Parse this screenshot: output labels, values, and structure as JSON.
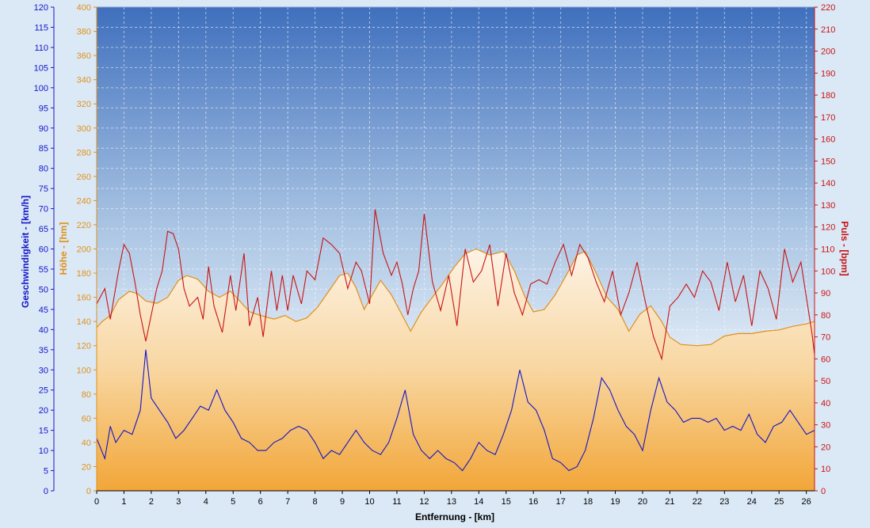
{
  "chart_data": {
    "type": "line",
    "xlabel": "Entfernung - [km]",
    "x_ticks": [
      0,
      1,
      2,
      3,
      4,
      5,
      6,
      7,
      8,
      9,
      10,
      11,
      12,
      13,
      14,
      15,
      16,
      17,
      18,
      19,
      20,
      21,
      22,
      23,
      24,
      25,
      26
    ],
    "xlim": [
      0,
      26.3
    ],
    "grid": true,
    "axes": {
      "speed": {
        "label": "Geschwindigkeit - [km/h]",
        "range": [
          0,
          120
        ],
        "step": 5,
        "color": "#1414c8"
      },
      "altitude": {
        "label": "Höhe - [hm]",
        "range": [
          0,
          400
        ],
        "step": 20,
        "color": "#e0901a"
      },
      "pulse": {
        "label": "Puls - [bpm]",
        "range": [
          0,
          220
        ],
        "step": 10,
        "color": "#c81414"
      }
    },
    "series": [
      {
        "name": "Höhe",
        "axis": "altitude",
        "type": "area",
        "points": [
          [
            0,
            135
          ],
          [
            0.2,
            140
          ],
          [
            0.5,
            145
          ],
          [
            0.8,
            158
          ],
          [
            1.2,
            165
          ],
          [
            1.5,
            163
          ],
          [
            1.8,
            157
          ],
          [
            2.2,
            155
          ],
          [
            2.6,
            160
          ],
          [
            3.0,
            174
          ],
          [
            3.3,
            178
          ],
          [
            3.7,
            175
          ],
          [
            4.1,
            165
          ],
          [
            4.5,
            160
          ],
          [
            4.9,
            165
          ],
          [
            5.2,
            158
          ],
          [
            5.6,
            148
          ],
          [
            6.0,
            145
          ],
          [
            6.5,
            142
          ],
          [
            6.9,
            145
          ],
          [
            7.3,
            140
          ],
          [
            7.7,
            143
          ],
          [
            8.1,
            152
          ],
          [
            8.5,
            165
          ],
          [
            8.9,
            178
          ],
          [
            9.2,
            180
          ],
          [
            9.5,
            168
          ],
          [
            9.8,
            150
          ],
          [
            10.1,
            162
          ],
          [
            10.4,
            174
          ],
          [
            10.8,
            162
          ],
          [
            11.2,
            145
          ],
          [
            11.5,
            132
          ],
          [
            11.9,
            148
          ],
          [
            12.3,
            160
          ],
          [
            12.7,
            172
          ],
          [
            13.1,
            185
          ],
          [
            13.5,
            196
          ],
          [
            13.9,
            200
          ],
          [
            14.4,
            195
          ],
          [
            14.9,
            198
          ],
          [
            15.3,
            182
          ],
          [
            15.7,
            160
          ],
          [
            16.0,
            148
          ],
          [
            16.4,
            150
          ],
          [
            16.8,
            162
          ],
          [
            17.2,
            178
          ],
          [
            17.6,
            195
          ],
          [
            17.9,
            198
          ],
          [
            18.3,
            180
          ],
          [
            18.7,
            160
          ],
          [
            19.1,
            150
          ],
          [
            19.5,
            132
          ],
          [
            19.9,
            146
          ],
          [
            20.3,
            153
          ],
          [
            20.7,
            140
          ],
          [
            21.0,
            127
          ],
          [
            21.4,
            121
          ],
          [
            22.0,
            120
          ],
          [
            22.5,
            121
          ],
          [
            23.0,
            128
          ],
          [
            23.5,
            130
          ],
          [
            24.0,
            130
          ],
          [
            24.5,
            132
          ],
          [
            25.0,
            133
          ],
          [
            25.5,
            136
          ],
          [
            26.0,
            138
          ],
          [
            26.3,
            140
          ]
        ]
      },
      {
        "name": "Puls",
        "axis": "pulse",
        "type": "line",
        "points": [
          [
            0,
            85
          ],
          [
            0.3,
            92
          ],
          [
            0.5,
            78
          ],
          [
            0.8,
            100
          ],
          [
            1.0,
            112
          ],
          [
            1.2,
            108
          ],
          [
            1.4,
            95
          ],
          [
            1.6,
            80
          ],
          [
            1.8,
            68
          ],
          [
            2.0,
            80
          ],
          [
            2.2,
            92
          ],
          [
            2.4,
            100
          ],
          [
            2.6,
            118
          ],
          [
            2.8,
            117
          ],
          [
            3.0,
            110
          ],
          [
            3.2,
            92
          ],
          [
            3.4,
            84
          ],
          [
            3.7,
            88
          ],
          [
            3.9,
            78
          ],
          [
            4.1,
            102
          ],
          [
            4.3,
            84
          ],
          [
            4.6,
            72
          ],
          [
            4.9,
            98
          ],
          [
            5.1,
            82
          ],
          [
            5.4,
            108
          ],
          [
            5.6,
            75
          ],
          [
            5.9,
            88
          ],
          [
            6.1,
            70
          ],
          [
            6.4,
            100
          ],
          [
            6.6,
            82
          ],
          [
            6.8,
            98
          ],
          [
            7.0,
            82
          ],
          [
            7.2,
            98
          ],
          [
            7.5,
            85
          ],
          [
            7.7,
            100
          ],
          [
            8.0,
            96
          ],
          [
            8.3,
            115
          ],
          [
            8.6,
            112
          ],
          [
            8.9,
            108
          ],
          [
            9.2,
            92
          ],
          [
            9.5,
            104
          ],
          [
            9.7,
            100
          ],
          [
            10.0,
            85
          ],
          [
            10.2,
            128
          ],
          [
            10.5,
            108
          ],
          [
            10.8,
            98
          ],
          [
            11.0,
            104
          ],
          [
            11.2,
            94
          ],
          [
            11.4,
            80
          ],
          [
            11.6,
            92
          ],
          [
            11.8,
            100
          ],
          [
            12.0,
            126
          ],
          [
            12.3,
            95
          ],
          [
            12.6,
            82
          ],
          [
            12.9,
            98
          ],
          [
            13.2,
            75
          ],
          [
            13.5,
            110
          ],
          [
            13.8,
            95
          ],
          [
            14.1,
            100
          ],
          [
            14.4,
            112
          ],
          [
            14.7,
            84
          ],
          [
            15.0,
            108
          ],
          [
            15.3,
            90
          ],
          [
            15.6,
            80
          ],
          [
            15.9,
            94
          ],
          [
            16.2,
            96
          ],
          [
            16.5,
            94
          ],
          [
            16.8,
            104
          ],
          [
            17.1,
            112
          ],
          [
            17.4,
            98
          ],
          [
            17.7,
            112
          ],
          [
            18.0,
            106
          ],
          [
            18.3,
            95
          ],
          [
            18.6,
            86
          ],
          [
            18.9,
            100
          ],
          [
            19.2,
            80
          ],
          [
            19.5,
            90
          ],
          [
            19.8,
            104
          ],
          [
            20.1,
            86
          ],
          [
            20.4,
            70
          ],
          [
            20.7,
            60
          ],
          [
            21.0,
            84
          ],
          [
            21.3,
            88
          ],
          [
            21.6,
            94
          ],
          [
            21.9,
            88
          ],
          [
            22.2,
            100
          ],
          [
            22.5,
            95
          ],
          [
            22.8,
            82
          ],
          [
            23.1,
            104
          ],
          [
            23.4,
            86
          ],
          [
            23.7,
            98
          ],
          [
            24.0,
            75
          ],
          [
            24.3,
            100
          ],
          [
            24.6,
            92
          ],
          [
            24.9,
            78
          ],
          [
            25.2,
            110
          ],
          [
            25.5,
            95
          ],
          [
            25.8,
            104
          ],
          [
            26.0,
            88
          ],
          [
            26.2,
            72
          ],
          [
            26.3,
            62
          ]
        ]
      },
      {
        "name": "Geschwindigkeit",
        "axis": "speed",
        "type": "line",
        "points": [
          [
            0,
            13
          ],
          [
            0.3,
            8
          ],
          [
            0.5,
            16
          ],
          [
            0.7,
            12
          ],
          [
            1.0,
            15
          ],
          [
            1.3,
            14
          ],
          [
            1.6,
            20
          ],
          [
            1.8,
            35
          ],
          [
            2.0,
            23
          ],
          [
            2.3,
            20
          ],
          [
            2.6,
            17
          ],
          [
            2.9,
            13
          ],
          [
            3.2,
            15
          ],
          [
            3.5,
            18
          ],
          [
            3.8,
            21
          ],
          [
            4.1,
            20
          ],
          [
            4.4,
            25
          ],
          [
            4.7,
            20
          ],
          [
            5.0,
            17
          ],
          [
            5.3,
            13
          ],
          [
            5.6,
            12
          ],
          [
            5.9,
            10
          ],
          [
            6.2,
            10
          ],
          [
            6.5,
            12
          ],
          [
            6.8,
            13
          ],
          [
            7.1,
            15
          ],
          [
            7.4,
            16
          ],
          [
            7.7,
            15
          ],
          [
            8.0,
            12
          ],
          [
            8.3,
            8
          ],
          [
            8.6,
            10
          ],
          [
            8.9,
            9
          ],
          [
            9.2,
            12
          ],
          [
            9.5,
            15
          ],
          [
            9.8,
            12
          ],
          [
            10.1,
            10
          ],
          [
            10.4,
            9
          ],
          [
            10.7,
            12
          ],
          [
            11.0,
            18
          ],
          [
            11.3,
            25
          ],
          [
            11.6,
            14
          ],
          [
            11.9,
            10
          ],
          [
            12.2,
            8
          ],
          [
            12.5,
            10
          ],
          [
            12.8,
            8
          ],
          [
            13.1,
            7
          ],
          [
            13.4,
            5
          ],
          [
            13.7,
            8
          ],
          [
            14.0,
            12
          ],
          [
            14.3,
            10
          ],
          [
            14.6,
            9
          ],
          [
            14.9,
            14
          ],
          [
            15.2,
            20
          ],
          [
            15.5,
            30
          ],
          [
            15.8,
            22
          ],
          [
            16.1,
            20
          ],
          [
            16.4,
            15
          ],
          [
            16.7,
            8
          ],
          [
            17.0,
            7
          ],
          [
            17.3,
            5
          ],
          [
            17.6,
            6
          ],
          [
            17.9,
            10
          ],
          [
            18.2,
            18
          ],
          [
            18.5,
            28
          ],
          [
            18.8,
            25
          ],
          [
            19.1,
            20
          ],
          [
            19.4,
            16
          ],
          [
            19.7,
            14
          ],
          [
            20.0,
            10
          ],
          [
            20.3,
            20
          ],
          [
            20.6,
            28
          ],
          [
            20.9,
            22
          ],
          [
            21.2,
            20
          ],
          [
            21.5,
            17
          ],
          [
            21.8,
            18
          ],
          [
            22.1,
            18
          ],
          [
            22.4,
            17
          ],
          [
            22.7,
            18
          ],
          [
            23.0,
            15
          ],
          [
            23.3,
            16
          ],
          [
            23.6,
            15
          ],
          [
            23.9,
            19
          ],
          [
            24.2,
            14
          ],
          [
            24.5,
            12
          ],
          [
            24.8,
            16
          ],
          [
            25.1,
            17
          ],
          [
            25.4,
            20
          ],
          [
            25.7,
            17
          ],
          [
            26.0,
            14
          ],
          [
            26.3,
            15
          ]
        ]
      }
    ]
  }
}
